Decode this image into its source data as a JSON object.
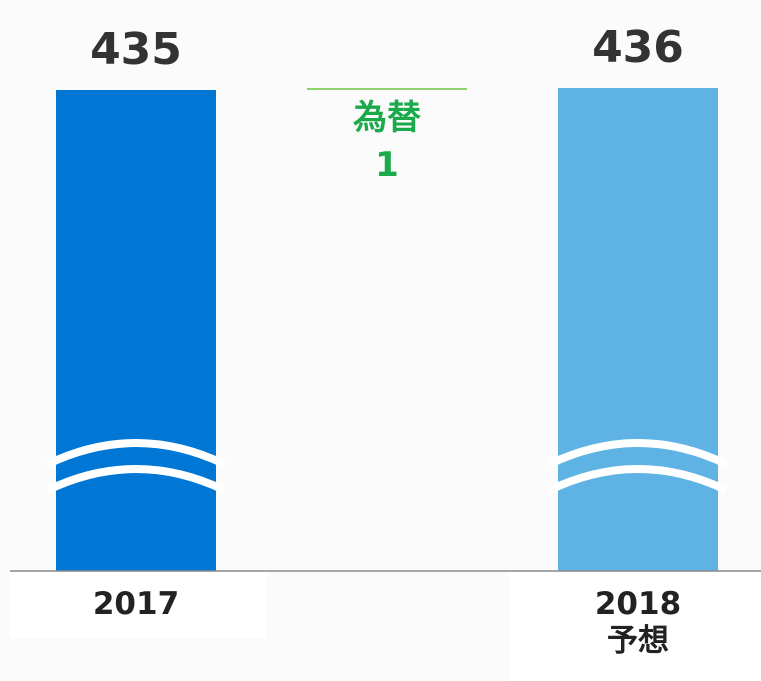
{
  "chart_data": {
    "type": "waterfall",
    "categories": [
      "2017",
      "為替",
      "2018\n予想"
    ],
    "values": [
      435,
      1,
      436
    ],
    "kinds": [
      "total",
      "delta",
      "total"
    ],
    "colors": [
      "#0077d4",
      "#8fd16a",
      "#5eb3e4"
    ],
    "label_color_delta": "#1aaa4a",
    "ylim": [
      195,
      440
    ],
    "axis_break": true
  }
}
